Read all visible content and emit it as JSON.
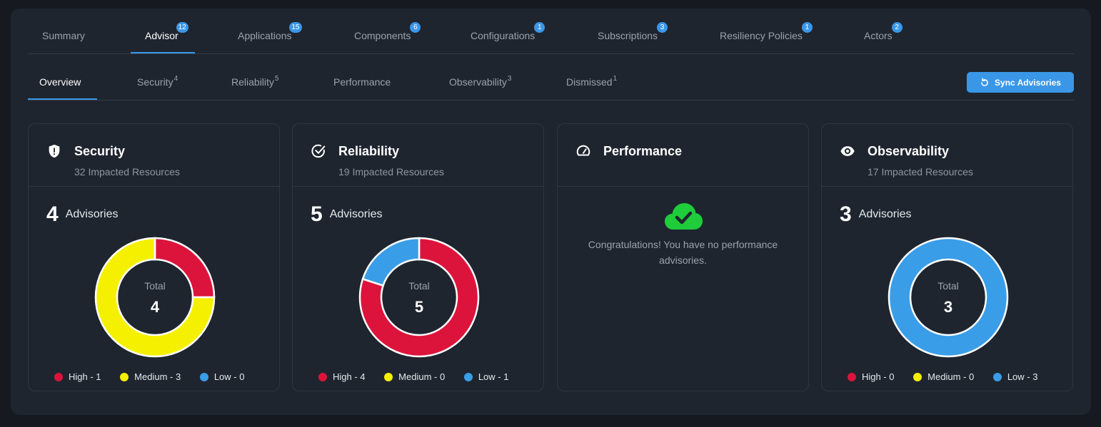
{
  "tabs": [
    {
      "label": "Summary",
      "badge": ""
    },
    {
      "label": "Advisor",
      "badge": "12"
    },
    {
      "label": "Applications",
      "badge": "15"
    },
    {
      "label": "Components",
      "badge": "6"
    },
    {
      "label": "Configurations",
      "badge": "1"
    },
    {
      "label": "Subscriptions",
      "badge": "3"
    },
    {
      "label": "Resiliency Policies",
      "badge": "1"
    },
    {
      "label": "Actors",
      "badge": "2"
    }
  ],
  "active_tab": "Advisor",
  "subtabs": [
    {
      "label": "Overview",
      "count": ""
    },
    {
      "label": "Security",
      "count": "4"
    },
    {
      "label": "Reliability",
      "count": "5"
    },
    {
      "label": "Performance",
      "count": ""
    },
    {
      "label": "Observability",
      "count": "3"
    },
    {
      "label": "Dismissed",
      "count": "1"
    }
  ],
  "active_subtab": "Overview",
  "sync_button": {
    "label": "Sync Advisories",
    "icon": "refresh-icon"
  },
  "colors": {
    "high": "#dc143c",
    "medium": "#f5f000",
    "low": "#3a9de8",
    "accent": "#3a97e8",
    "success": "#1fcc3a"
  },
  "cards": [
    {
      "title": "Security",
      "icon": "shield-icon",
      "subtitle": "32 Impacted Resources",
      "advisories": "4",
      "advisories_label": "Advisories",
      "total_label": "Total",
      "total": "4",
      "chart_data": {
        "type": "pie",
        "series": [
          {
            "name": "High",
            "value": 1
          },
          {
            "name": "Medium",
            "value": 3
          },
          {
            "name": "Low",
            "value": 0
          }
        ]
      },
      "legend": [
        "High - 1",
        "Medium - 3",
        "Low - 0"
      ]
    },
    {
      "title": "Reliability",
      "icon": "check-circle-icon",
      "subtitle": "19 Impacted Resources",
      "advisories": "5",
      "advisories_label": "Advisories",
      "total_label": "Total",
      "total": "5",
      "chart_data": {
        "type": "pie",
        "series": [
          {
            "name": "High",
            "value": 4
          },
          {
            "name": "Medium",
            "value": 0
          },
          {
            "name": "Low",
            "value": 1
          }
        ]
      },
      "legend": [
        "High - 4",
        "Medium - 0",
        "Low - 1"
      ]
    },
    {
      "title": "Performance",
      "icon": "gauge-icon",
      "message": "Congratulations! You have no performance advisories.",
      "message_icon": "cloud-check-icon"
    },
    {
      "title": "Observability",
      "icon": "eye-icon",
      "subtitle": "17 Impacted Resources",
      "advisories": "3",
      "advisories_label": "Advisories",
      "total_label": "Total",
      "total": "3",
      "chart_data": {
        "type": "pie",
        "series": [
          {
            "name": "High",
            "value": 0
          },
          {
            "name": "Medium",
            "value": 0
          },
          {
            "name": "Low",
            "value": 3
          }
        ]
      },
      "legend": [
        "High - 0",
        "Medium - 0",
        "Low - 3"
      ]
    }
  ]
}
